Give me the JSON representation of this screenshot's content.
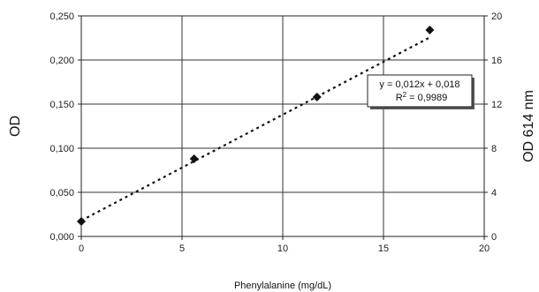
{
  "chart_data": {
    "type": "scatter",
    "xlabel": "Phenylalanine (mg/dL)",
    "ylabel_left": "OD",
    "ylabel_right": "OD 614 nm",
    "xlim": [
      0,
      20
    ],
    "ylim_left": [
      0,
      0.25
    ],
    "ylim_right": [
      0,
      20
    ],
    "x_ticks": [
      0,
      5,
      10,
      15,
      20
    ],
    "x_tick_labels": [
      "0",
      "5",
      "10",
      "15",
      "20"
    ],
    "y_left_ticks": [
      0,
      0.05,
      0.1,
      0.15,
      0.2,
      0.25
    ],
    "y_left_tick_labels": [
      "0,000",
      "0,050",
      "0,100",
      "0,150",
      "0,200",
      "0,250"
    ],
    "y_right_ticks": [
      0,
      4,
      8,
      12,
      16,
      20
    ],
    "y_right_tick_labels": [
      "0",
      "4",
      "8",
      "12",
      "16",
      "20"
    ],
    "grid": true,
    "points": [
      {
        "x": 0,
        "y": 0.017
      },
      {
        "x": 5.6,
        "y": 0.088
      },
      {
        "x": 11.7,
        "y": 0.158
      },
      {
        "x": 17.3,
        "y": 0.234
      }
    ],
    "trendline": {
      "slope": 0.012,
      "intercept": 0.018,
      "style": "dotted"
    },
    "equation_line1": "y = 0,012x + 0,018",
    "equation_r2_prefix": "R",
    "equation_r2_sup": "2",
    "equation_r2_value": " = 0,9989"
  }
}
